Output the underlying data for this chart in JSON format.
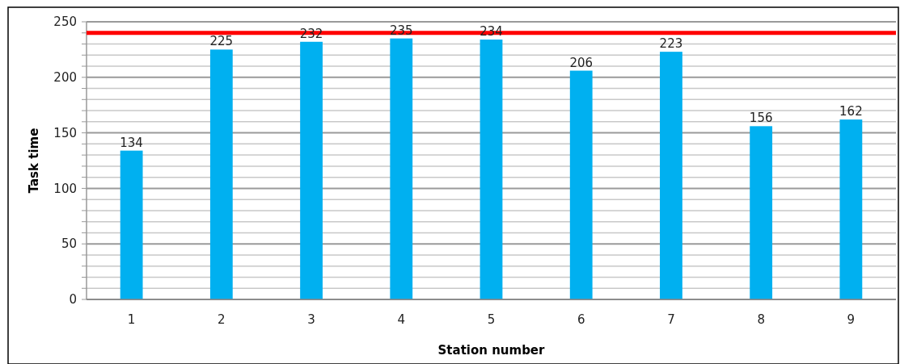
{
  "chart_data": {
    "type": "bar",
    "xlabel": "Station number",
    "ylabel": "Task time",
    "categories": [
      "1",
      "2",
      "3",
      "4",
      "5",
      "6",
      "7",
      "8",
      "9"
    ],
    "values": [
      134,
      225,
      232,
      235,
      234,
      206,
      223,
      156,
      162
    ],
    "color": "#00b0f0",
    "data_labels": true,
    "ylim": [
      0,
      250
    ],
    "yticks": [
      0,
      {
        "value": 10,
        "label": null
      },
      {
        "value": 20,
        "label": null
      },
      {
        "value": 30,
        "label": null
      },
      {
        "value": 40,
        "label": null
      },
      50,
      {
        "value": 60,
        "label": null
      },
      {
        "value": 70,
        "label": null
      },
      {
        "value": 80,
        "label": null
      },
      {
        "value": 90,
        "label": null
      },
      100,
      {
        "value": 110,
        "label": null
      },
      {
        "value": 120,
        "label": null
      },
      {
        "value": 130,
        "label": null
      },
      {
        "value": 140,
        "label": null
      },
      150,
      {
        "value": 160,
        "label": null
      },
      {
        "value": 170,
        "label": null
      },
      {
        "value": 180,
        "label": null
      },
      {
        "value": 190,
        "label": null
      },
      200,
      {
        "value": 210,
        "label": null
      },
      {
        "value": 220,
        "label": null
      },
      {
        "value": 230,
        "label": null
      },
      {
        "value": 240,
        "label": null
      },
      250
    ],
    "grid": true,
    "ref_lines": [
      {
        "axis": "y",
        "value": 240,
        "color": "#ff0000",
        "line_style": "solid"
      }
    ]
  }
}
